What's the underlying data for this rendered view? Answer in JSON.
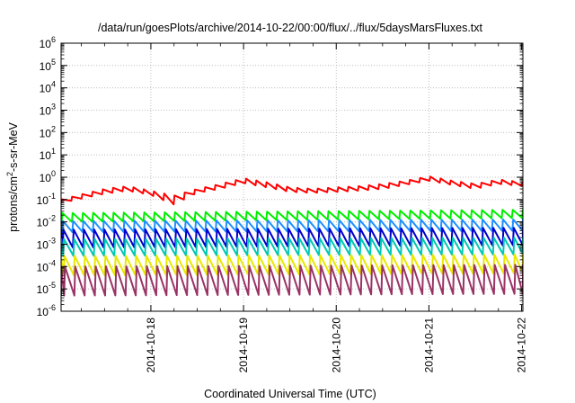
{
  "chart_data": {
    "type": "line",
    "title": "/data/run/goesPlots/archive/2014-10-22/00:00/flux/../flux/5daysMarsFluxes.txt",
    "xlabel": "Coordinated Universal Time (UTC)",
    "ylabel": "protons/cm²-s-sr-MeV",
    "y_scale": "log",
    "ylim": [
      "1e-6",
      "1e6"
    ],
    "xlim": [
      "2014-10-17 00:45",
      "2014-10-22 00:20"
    ],
    "y_ticks": [
      {
        "base": "10",
        "exp": "-6"
      },
      {
        "base": "10",
        "exp": "-5"
      },
      {
        "base": "10",
        "exp": "-4"
      },
      {
        "base": "10",
        "exp": "-3"
      },
      {
        "base": "10",
        "exp": "-2"
      },
      {
        "base": "10",
        "exp": "-1"
      },
      {
        "base": "10",
        "exp": "0"
      },
      {
        "base": "10",
        "exp": "1"
      },
      {
        "base": "10",
        "exp": "2"
      },
      {
        "base": "10",
        "exp": "3"
      },
      {
        "base": "10",
        "exp": "4"
      },
      {
        "base": "10",
        "exp": "5"
      },
      {
        "base": "10",
        "exp": "6"
      }
    ],
    "x_tick_labels": [
      "2014-10-18",
      "2014-10-19",
      "2014-10-20",
      "2014-10-21",
      "2014-10-22"
    ],
    "grid": true,
    "legend": "none",
    "oscillation_period_hours": 2.65,
    "series": [
      {
        "color": "#ff0000",
        "x": [
          "2014-10-17 00:45",
          "2014-10-17 06:00",
          "2014-10-17 12:00",
          "2014-10-17 18:00",
          "2014-10-18 00:00",
          "2014-10-18 06:00",
          "2014-10-18 12:00",
          "2014-10-18 18:00",
          "2014-10-19 00:00",
          "2014-10-19 06:00",
          "2014-10-19 12:00",
          "2014-10-19 18:00",
          "2014-10-20 00:00",
          "2014-10-20 06:00",
          "2014-10-20 12:00",
          "2014-10-20 18:00",
          "2014-10-21 00:00",
          "2014-10-21 06:00",
          "2014-10-21 12:00",
          "2014-10-21 18:00",
          "2014-10-22 00:20"
        ],
        "y_upper": [
          0.1,
          0.17,
          0.3,
          0.4,
          0.25,
          0.15,
          0.3,
          0.5,
          0.9,
          0.6,
          0.35,
          0.3,
          0.35,
          0.4,
          0.5,
          0.7,
          1.1,
          0.7,
          0.5,
          0.8,
          0.6
        ],
        "y_lower": [
          0.07,
          0.11,
          0.18,
          0.25,
          0.16,
          0.06,
          0.2,
          0.3,
          0.55,
          0.35,
          0.22,
          0.2,
          0.22,
          0.25,
          0.3,
          0.45,
          0.7,
          0.45,
          0.3,
          0.5,
          0.4
        ]
      },
      {
        "color": "#00ee00",
        "x": [
          "2014-10-17 00:45",
          "2014-10-22 00:20"
        ],
        "y_upper": [
          0.025,
          0.035
        ],
        "y_lower": [
          0.01,
          0.015
        ]
      },
      {
        "color": "#1e90ff",
        "x": [
          "2014-10-17 00:45",
          "2014-10-22 00:20"
        ],
        "y_upper": [
          0.011,
          0.013
        ],
        "y_lower": [
          0.0035,
          0.004
        ]
      },
      {
        "color": "#0000cc",
        "x": [
          "2014-10-17 00:45",
          "2014-10-22 00:20"
        ],
        "y_upper": [
          0.0045,
          0.0055
        ],
        "y_lower": [
          0.0007,
          0.0009
        ]
      },
      {
        "color": "#00c8b4",
        "x": [
          "2014-10-17 00:45",
          "2014-10-22 00:20"
        ],
        "y_upper": [
          0.0017,
          0.002
        ],
        "y_lower": [
          0.0003,
          0.00035
        ]
      },
      {
        "color": "#e8e800",
        "x": [
          "2014-10-17 00:45",
          "2014-10-22 00:20"
        ],
        "y_upper": [
          0.0003,
          0.00035
        ],
        "y_lower": [
          4e-05,
          5e-05
        ]
      },
      {
        "color": "#993366",
        "x": [
          "2014-10-17 00:45",
          "2014-10-22 00:20"
        ],
        "y_upper": [
          0.0001,
          0.00012
        ],
        "y_lower": [
          5e-06,
          6e-06
        ]
      }
    ]
  }
}
